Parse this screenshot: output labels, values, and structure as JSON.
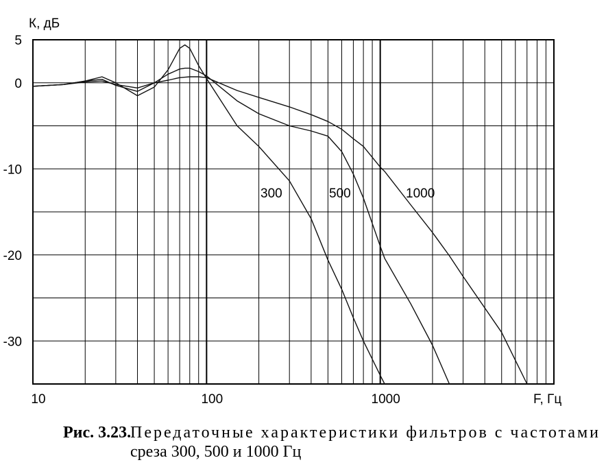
{
  "chart_data": {
    "type": "line",
    "y_label": "К, дБ",
    "x_label": "F, Гц",
    "x_scale": "log",
    "minor_grid": true,
    "grid": true,
    "xlim": [
      10,
      10000
    ],
    "xticks": [
      10,
      100,
      1000
    ],
    "ylim": [
      -35,
      5
    ],
    "yticks": [
      5,
      0,
      -10,
      -20,
      -30
    ],
    "minor_yticks": [
      -5,
      -15,
      -25
    ],
    "x": [
      10,
      15,
      20,
      25,
      30,
      40,
      50,
      60,
      70,
      75,
      80,
      90,
      100,
      150,
      200,
      300,
      400,
      500,
      600,
      700,
      800,
      1000,
      1060,
      1500,
      2000,
      2500,
      3000,
      5000,
      7000
    ],
    "series": [
      {
        "name": "300",
        "color": "#111",
        "values": [
          -0.4,
          -0.2,
          0.2,
          0.7,
          0,
          -1.5,
          -0.5,
          1.5,
          4,
          4.4,
          4,
          2,
          0.5,
          -5,
          -7.4,
          -11.4,
          -15.8,
          -20.6,
          -24,
          -27.3,
          -30,
          -34,
          -35,
          null,
          null,
          null,
          null,
          null,
          null
        ]
      },
      {
        "name": "500",
        "color": "#111",
        "values": [
          -0.4,
          -0.2,
          0.2,
          0.4,
          -0.3,
          -1,
          0,
          1,
          1.6,
          1.7,
          1.7,
          1.3,
          0.8,
          -2.1,
          -3.6,
          -5,
          -5.6,
          -6.2,
          -8,
          -10.6,
          -13.4,
          -19,
          -20.4,
          -25.7,
          -30.5,
          -35,
          null,
          null,
          null
        ]
      },
      {
        "name": "1000",
        "color": "#111",
        "values": [
          -0.4,
          -0.2,
          0.1,
          0.2,
          -0.2,
          -0.6,
          0,
          0.3,
          0.6,
          0.65,
          0.7,
          0.7,
          0.6,
          -0.9,
          -1.7,
          -2.8,
          -3.7,
          -4.5,
          -5.4,
          -6.5,
          -7.4,
          -9.8,
          -10.3,
          -14.2,
          -17.4,
          -20.1,
          -22.5,
          -29,
          -35
        ]
      }
    ]
  },
  "caption": {
    "label": "Рис. 3.23.",
    "lines": [
      "Передаточные характеристики фильтров с частотами",
      "среза 300, 500 и 1000 Гц"
    ]
  }
}
